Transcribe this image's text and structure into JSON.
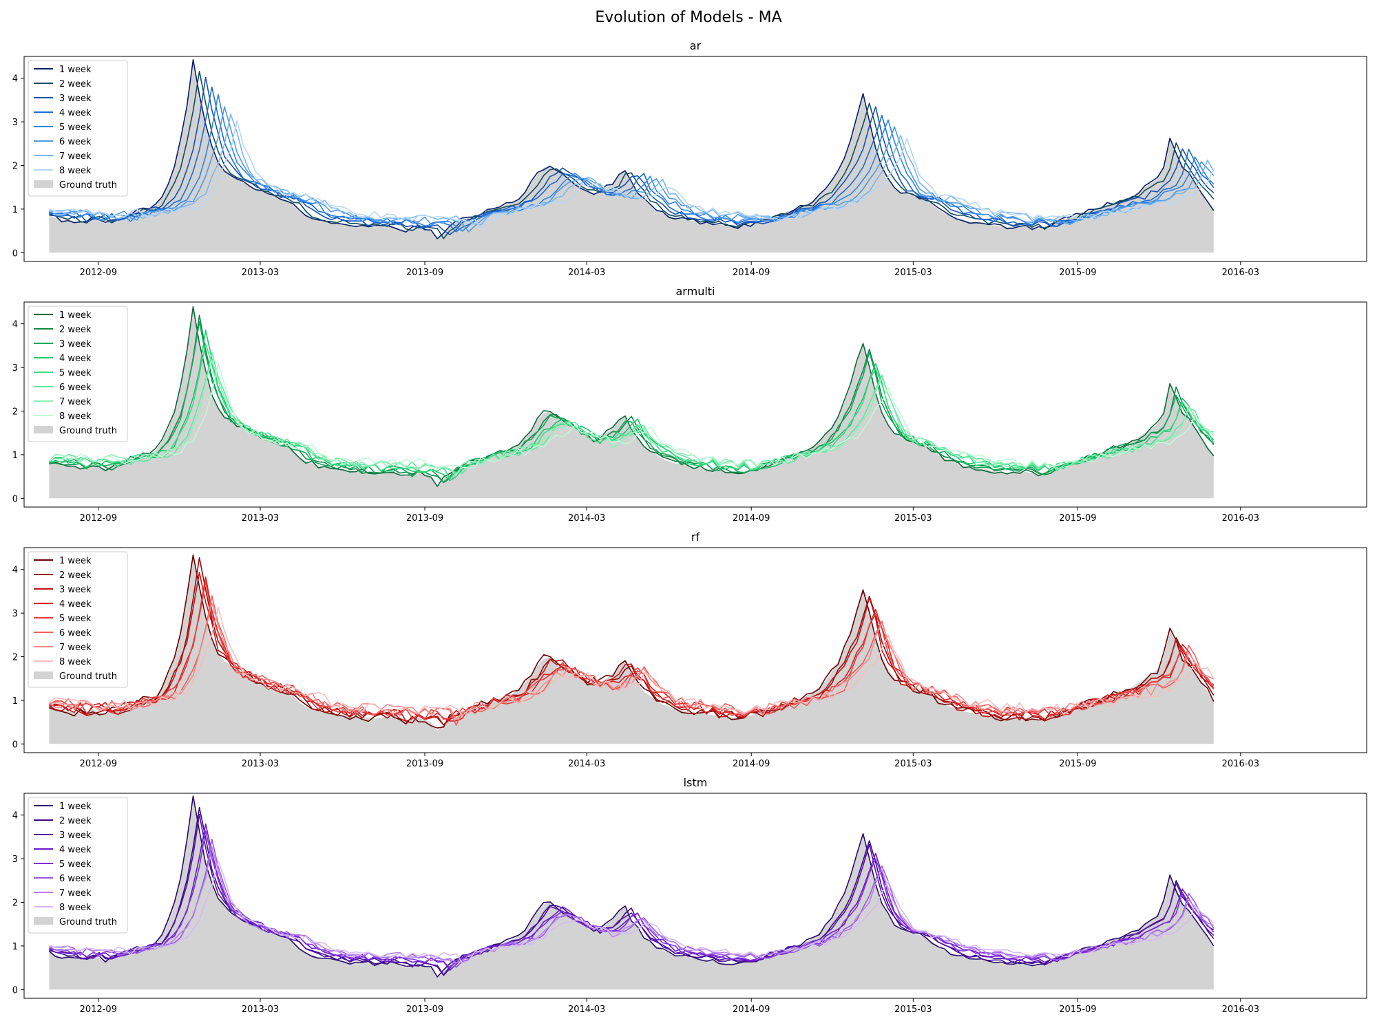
{
  "figure": {
    "title": "Evolution of Models - MA"
  },
  "chart_data": [
    {
      "type": "line",
      "title": "ar",
      "palette": [
        "#0b1f6b",
        "#0e4d5c",
        "#1450b5",
        "#1a6bd6",
        "#2b84ea",
        "#4f9ae8",
        "#7ab6f0",
        "#b7d7f7"
      ],
      "series": [
        {
          "name": "1 week",
          "lag": 0,
          "jitter": 0.05
        },
        {
          "name": "2 week",
          "lag": 1,
          "jitter": 0.05
        },
        {
          "name": "3 week",
          "lag": 2,
          "jitter": 0.06
        },
        {
          "name": "4 week",
          "lag": 3,
          "jitter": 0.06
        },
        {
          "name": "5 week",
          "lag": 4,
          "jitter": 0.07
        },
        {
          "name": "6 week",
          "lag": 5,
          "jitter": 0.07
        },
        {
          "name": "7 week",
          "lag": 6,
          "jitter": 0.08
        },
        {
          "name": "8 week",
          "lag": 7,
          "jitter": 0.08
        }
      ],
      "ground_truth_name": "Ground truth",
      "xlim": [
        "2012-06-10",
        "2016-07-20"
      ],
      "ylim": [
        -0.2,
        4.5
      ],
      "yticks": [
        0,
        1,
        2,
        3,
        4
      ],
      "xticks": [
        "2012-09",
        "2013-03",
        "2013-09",
        "2014-03",
        "2014-09",
        "2015-03",
        "2015-09",
        "2016-03"
      ],
      "legend": "upper-left"
    },
    {
      "type": "line",
      "title": "armulti",
      "palette": [
        "#0b6b3a",
        "#0c8a47",
        "#12a957",
        "#1bc86a",
        "#3ddc84",
        "#5ee89b",
        "#8af0b6",
        "#c1f7d6"
      ],
      "series": [
        {
          "name": "1 week",
          "lag": 0,
          "jitter": 0.06
        },
        {
          "name": "2 week",
          "lag": 1,
          "jitter": 0.06
        },
        {
          "name": "3 week",
          "lag": 1,
          "jitter": 0.08
        },
        {
          "name": "4 week",
          "lag": 2,
          "jitter": 0.08
        },
        {
          "name": "5 week",
          "lag": 2,
          "jitter": 0.09
        },
        {
          "name": "6 week",
          "lag": 3,
          "jitter": 0.09
        },
        {
          "name": "7 week",
          "lag": 3,
          "jitter": 0.1
        },
        {
          "name": "8 week",
          "lag": 4,
          "jitter": 0.1
        }
      ],
      "ground_truth_name": "Ground truth",
      "xlim": [
        "2012-06-10",
        "2016-07-20"
      ],
      "ylim": [
        -0.2,
        4.5
      ],
      "yticks": [
        0,
        1,
        2,
        3,
        4
      ],
      "xticks": [
        "2012-09",
        "2013-03",
        "2013-09",
        "2014-03",
        "2014-09",
        "2015-03",
        "2015-09",
        "2016-03"
      ],
      "legend": "upper-left"
    },
    {
      "type": "line",
      "title": "rf",
      "palette": [
        "#6b0000",
        "#9b0a0a",
        "#c41212",
        "#e01e1e",
        "#ee3b3b",
        "#f25c5c",
        "#f68a8a",
        "#f9bcbc"
      ],
      "series": [
        {
          "name": "1 week",
          "lag": 0,
          "jitter": 0.1
        },
        {
          "name": "2 week",
          "lag": 1,
          "jitter": 0.1
        },
        {
          "name": "3 week",
          "lag": 1,
          "jitter": 0.11
        },
        {
          "name": "4 week",
          "lag": 2,
          "jitter": 0.11
        },
        {
          "name": "5 week",
          "lag": 2,
          "jitter": 0.12
        },
        {
          "name": "6 week",
          "lag": 3,
          "jitter": 0.12
        },
        {
          "name": "7 week",
          "lag": 3,
          "jitter": 0.13
        },
        {
          "name": "8 week",
          "lag": 4,
          "jitter": 0.13
        }
      ],
      "ground_truth_name": "Ground truth",
      "xlim": [
        "2012-06-10",
        "2016-07-20"
      ],
      "ylim": [
        -0.2,
        4.5
      ],
      "yticks": [
        0,
        1,
        2,
        3,
        4
      ],
      "xticks": [
        "2012-09",
        "2013-03",
        "2013-09",
        "2014-03",
        "2014-09",
        "2015-03",
        "2015-09",
        "2016-03"
      ],
      "legend": "upper-left"
    },
    {
      "type": "line",
      "title": "lstm",
      "palette": [
        "#2a0a6b",
        "#3d0a8a",
        "#5510b0",
        "#6a17cc",
        "#8030e0",
        "#9a55ea",
        "#b880f0",
        "#d6b8f7"
      ],
      "series": [
        {
          "name": "1 week",
          "lag": 0,
          "jitter": 0.05
        },
        {
          "name": "2 week",
          "lag": 1,
          "jitter": 0.05
        },
        {
          "name": "3 week",
          "lag": 1,
          "jitter": 0.06
        },
        {
          "name": "4 week",
          "lag": 2,
          "jitter": 0.06
        },
        {
          "name": "5 week",
          "lag": 2,
          "jitter": 0.06
        },
        {
          "name": "6 week",
          "lag": 3,
          "jitter": 0.07
        },
        {
          "name": "7 week",
          "lag": 3,
          "jitter": 0.07
        },
        {
          "name": "8 week",
          "lag": 4,
          "jitter": 0.07
        }
      ],
      "ground_truth_name": "Ground truth",
      "xlim": [
        "2012-06-10",
        "2016-07-20"
      ],
      "ylim": [
        -0.2,
        4.5
      ],
      "yticks": [
        0,
        1,
        2,
        3,
        4
      ],
      "xticks": [
        "2012-09",
        "2013-03",
        "2013-09",
        "2014-03",
        "2014-09",
        "2015-03",
        "2015-09",
        "2016-03"
      ],
      "legend": "upper-left"
    }
  ],
  "ground_truth": {
    "color": "#d3d3d3",
    "start": "2012-07-08",
    "step_days": 7,
    "values": [
      0.85,
      0.8,
      0.75,
      0.78,
      0.72,
      0.7,
      0.75,
      0.8,
      0.72,
      0.68,
      0.75,
      0.8,
      0.85,
      0.9,
      0.95,
      1.0,
      1.0,
      1.1,
      1.3,
      1.6,
      2.0,
      2.6,
      3.4,
      4.4,
      3.6,
      2.9,
      2.4,
      2.1,
      1.9,
      1.8,
      1.7,
      1.6,
      1.55,
      1.45,
      1.4,
      1.35,
      1.3,
      1.25,
      1.2,
      1.1,
      0.95,
      0.85,
      0.8,
      0.75,
      0.72,
      0.7,
      0.68,
      0.65,
      0.63,
      0.6,
      0.62,
      0.6,
      0.58,
      0.6,
      0.62,
      0.6,
      0.55,
      0.5,
      0.55,
      0.6,
      0.55,
      0.5,
      0.3,
      0.45,
      0.6,
      0.7,
      0.75,
      0.8,
      0.85,
      0.9,
      0.95,
      1.0,
      1.05,
      1.1,
      1.15,
      1.25,
      1.4,
      1.6,
      1.8,
      1.95,
      2.0,
      1.9,
      1.8,
      1.7,
      1.6,
      1.5,
      1.45,
      1.35,
      1.4,
      1.5,
      1.6,
      1.8,
      1.9,
      1.6,
      1.4,
      1.2,
      1.1,
      1.0,
      0.9,
      0.85,
      0.8,
      0.78,
      0.75,
      0.72,
      0.7,
      0.68,
      0.66,
      0.64,
      0.62,
      0.6,
      0.6,
      0.62,
      0.65,
      0.7,
      0.75,
      0.8,
      0.85,
      0.9,
      0.95,
      1.0,
      1.05,
      1.1,
      1.2,
      1.3,
      1.45,
      1.65,
      1.9,
      2.2,
      2.6,
      3.1,
      3.6,
      3.0,
      2.4,
      2.0,
      1.7,
      1.5,
      1.4,
      1.35,
      1.3,
      1.25,
      1.2,
      1.1,
      1.0,
      0.9,
      0.85,
      0.8,
      0.75,
      0.72,
      0.7,
      0.68,
      0.65,
      0.62,
      0.6,
      0.58,
      0.6,
      0.62,
      0.6,
      0.58,
      0.55,
      0.6,
      0.65,
      0.7,
      0.75,
      0.8,
      0.85,
      0.9,
      0.95,
      1.0,
      1.05,
      1.1,
      1.15,
      1.2,
      1.25,
      1.3,
      1.4,
      1.5,
      1.6,
      1.7,
      2.0,
      2.6,
      2.3,
      2.0,
      1.8,
      1.6,
      1.4,
      1.2,
      1.0
    ]
  }
}
